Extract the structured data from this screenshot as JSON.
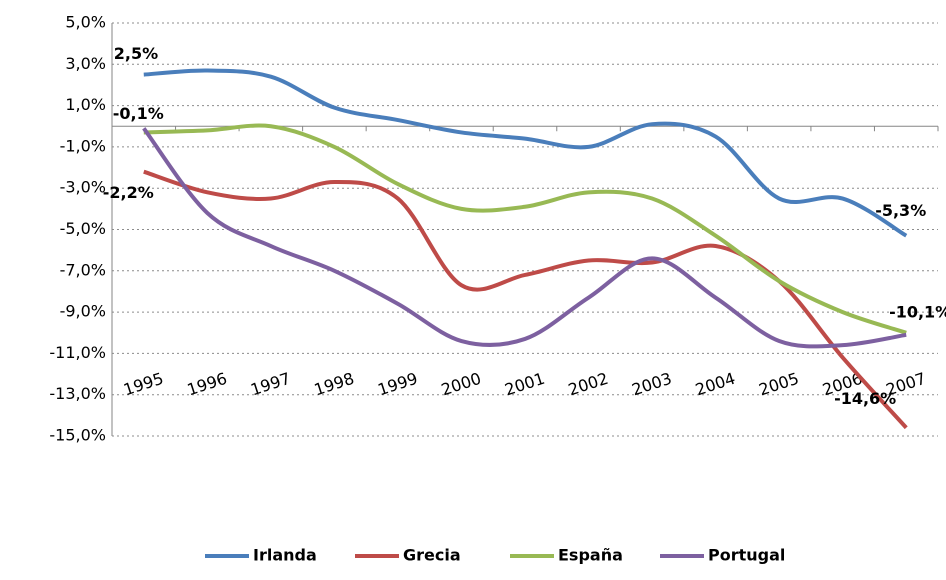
{
  "chart_data": {
    "type": "line",
    "categories": [
      "1995",
      "1996",
      "1997",
      "1998",
      "1999",
      "2000",
      "2001",
      "2002",
      "2003",
      "2004",
      "2005",
      "2006",
      "2007"
    ],
    "series": [
      {
        "name": "Irlanda",
        "color": "#4a7ebb",
        "values": [
          2.5,
          2.7,
          2.4,
          0.9,
          0.3,
          -0.3,
          -0.6,
          -1.0,
          0.1,
          -0.5,
          -3.5,
          -3.5,
          -5.3
        ],
        "value_labels": [
          "2,5%",
          null,
          null,
          null,
          null,
          null,
          null,
          null,
          null,
          null,
          null,
          null,
          "-5,3%"
        ]
      },
      {
        "name": "Grecia",
        "color": "#be4b48",
        "values": [
          -2.2,
          -3.2,
          -3.5,
          -2.7,
          -3.5,
          -7.7,
          -7.2,
          -6.5,
          -6.6,
          -5.8,
          -7.5,
          -11.2,
          -14.6
        ],
        "value_labels": [
          "-2,2%",
          null,
          null,
          null,
          null,
          null,
          null,
          null,
          null,
          null,
          null,
          null,
          "-14,6%"
        ]
      },
      {
        "name": "España",
        "color": "#98b954",
        "values": [
          -0.3,
          -0.2,
          0.0,
          -1.0,
          -2.8,
          -4.0,
          -3.9,
          -3.2,
          -3.5,
          -5.3,
          -7.5,
          -9.0,
          -10.0
        ]
      },
      {
        "name": "Portugal",
        "color": "#7d60a0",
        "values": [
          -0.1,
          -4.2,
          -5.8,
          -7.0,
          -8.6,
          -10.4,
          -10.3,
          -8.3,
          -6.4,
          -8.3,
          -10.4,
          -10.6,
          -10.1
        ],
        "value_labels": [
          "-0,1%",
          null,
          null,
          null,
          null,
          null,
          null,
          null,
          null,
          null,
          null,
          null,
          "-10,1%"
        ]
      }
    ],
    "ylim": [
      -15,
      5
    ],
    "yticks": [
      {
        "value": 5,
        "label": "5,0%"
      },
      {
        "value": 3,
        "label": "3,0%"
      },
      {
        "value": 1,
        "label": "1,0%"
      },
      {
        "value": -1,
        "label": "-1,0%"
      },
      {
        "value": -3,
        "label": "-3,0%"
      },
      {
        "value": -5,
        "label": "-5,0%"
      },
      {
        "value": -7,
        "label": "-7,0%"
      },
      {
        "value": -9,
        "label": "-9,0%"
      },
      {
        "value": -11,
        "label": "-11,0%"
      },
      {
        "value": -13,
        "label": "-13,0%"
      },
      {
        "value": -15,
        "label": "-15,0%"
      }
    ],
    "grid": true,
    "legend": "bottom"
  }
}
